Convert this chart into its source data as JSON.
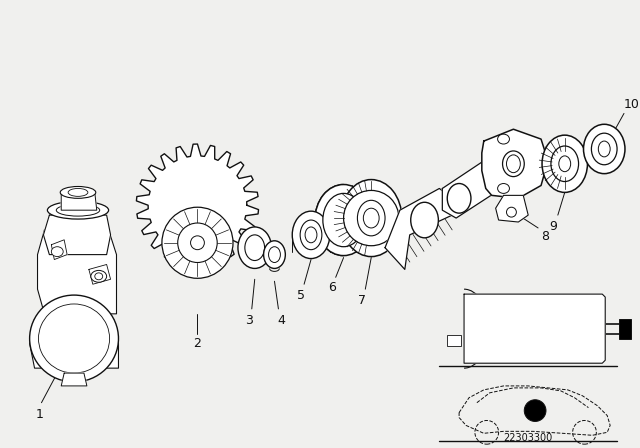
{
  "bg_color": "#f0f0ee",
  "line_color": "#111111",
  "fig_width": 6.4,
  "fig_height": 4.48,
  "dpi": 100,
  "diagram_id": "22303300"
}
